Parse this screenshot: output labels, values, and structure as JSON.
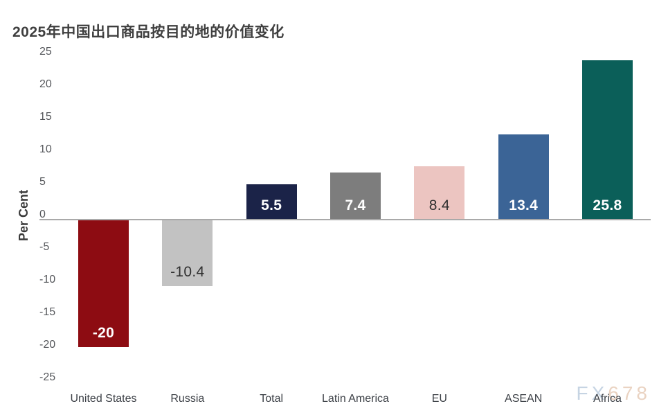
{
  "title": "2025年中国出口商品按目的地的价值变化",
  "watermark": {
    "part1": "FX",
    "part2": "678",
    "color1": "#c6d4e3",
    "color2": "#ead3c2"
  },
  "colors": {
    "background": "#ffffff",
    "axis_line": "#a9a9a9",
    "tick_text": "#55575b",
    "category_text": "#3d4147",
    "title_text": "#3f3f3f"
  },
  "chart_data": {
    "type": "bar",
    "title": "2025年中国出口商品按目的地的价值变化",
    "xlabel": "",
    "ylabel": "Per Cent",
    "ylim": [
      -25,
      25
    ],
    "ytick_step": 5,
    "yticks": [
      25,
      20,
      15,
      10,
      5,
      0,
      -5,
      -10,
      -15,
      -20,
      -25
    ],
    "grid": false,
    "legend": false,
    "categories": [
      "United States",
      "Russia",
      "Total",
      "Latin America",
      "EU",
      "ASEAN",
      "Africa"
    ],
    "values": [
      -20,
      -10.4,
      5.5,
      7.4,
      8.4,
      13.4,
      25.8
    ],
    "bars": [
      {
        "category": "United States",
        "value": -20,
        "label": "-20",
        "color": "#8d0c12",
        "label_color": "#ffffff"
      },
      {
        "category": "Russia",
        "value": -10.4,
        "label": "-10.4",
        "color": "#c2c2c2",
        "label_color": "#2f2f2f"
      },
      {
        "category": "Total",
        "value": 5.5,
        "label": "5.5",
        "color": "#1b2348",
        "label_color": "#ffffff"
      },
      {
        "category": "Latin America",
        "value": 7.4,
        "label": "7.4",
        "color": "#7d7d7d",
        "label_color": "#ffffff"
      },
      {
        "category": "EU",
        "value": 8.4,
        "label": "8.4",
        "color": "#ecc5c1",
        "label_color": "#2f2f2f"
      },
      {
        "category": "ASEAN",
        "value": 13.4,
        "label": "13.4",
        "color": "#3b6496",
        "label_color": "#ffffff"
      },
      {
        "category": "Africa",
        "value": 25.8,
        "label": "25.8",
        "color": "#0b5f59",
        "label_color": "#ffffff"
      }
    ]
  }
}
